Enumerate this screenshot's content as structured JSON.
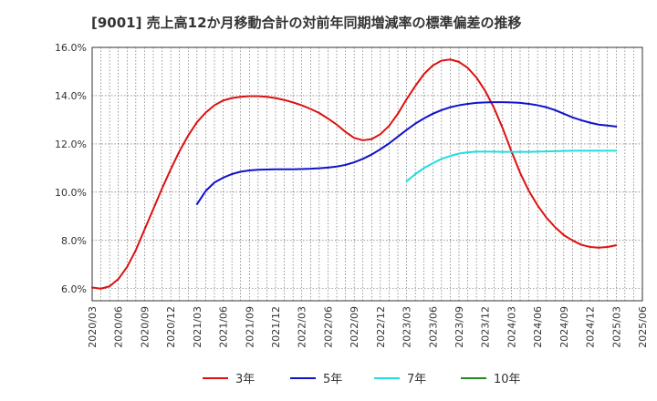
{
  "chart_data": {
    "type": "line",
    "title": "[9001]  売上高12か月移動合計の対前年同期増減率の標準偏差の推移",
    "xlabel": "",
    "ylabel": "",
    "ylim": [
      5.5,
      16.0
    ],
    "y_ticks": [
      "6.0%",
      "8.0%",
      "10.0%",
      "12.0%",
      "14.0%",
      "16.0%"
    ],
    "x_ticks": [
      "2020/03",
      "2020/06",
      "2020/09",
      "2020/12",
      "2021/03",
      "2021/06",
      "2021/09",
      "2021/12",
      "2022/03",
      "2022/06",
      "2022/09",
      "2022/12",
      "2023/03",
      "2023/06",
      "2023/09",
      "2023/12",
      "2024/03",
      "2024/06",
      "2024/09",
      "2024/12",
      "2025/03",
      "2025/06"
    ],
    "grid": true,
    "legend_position": "bottom",
    "series": [
      {
        "name": "3年",
        "color": "#dd1111",
        "start_index": 0,
        "values": [
          6.05,
          6.0,
          6.1,
          6.4,
          6.9,
          7.6,
          8.45,
          9.3,
          10.15,
          10.95,
          11.7,
          12.35,
          12.9,
          13.3,
          13.6,
          13.8,
          13.9,
          13.95,
          13.98,
          13.98,
          13.95,
          13.9,
          13.82,
          13.72,
          13.6,
          13.45,
          13.28,
          13.05,
          12.8,
          12.5,
          12.25,
          12.15,
          12.2,
          12.4,
          12.75,
          13.25,
          13.85,
          14.4,
          14.9,
          15.25,
          15.45,
          15.5,
          15.4,
          15.15,
          14.75,
          14.2,
          13.5,
          12.65,
          11.7,
          10.8,
          10.05,
          9.45,
          8.95,
          8.55,
          8.22,
          8.0,
          7.82,
          7.73,
          7.7,
          7.73,
          7.8
        ]
      },
      {
        "name": "5年",
        "color": "#1111cc",
        "start_index": 12,
        "values": [
          9.5,
          10.05,
          10.4,
          10.6,
          10.75,
          10.85,
          10.9,
          10.93,
          10.94,
          10.95,
          10.95,
          10.95,
          10.96,
          10.97,
          10.99,
          11.02,
          11.06,
          11.13,
          11.24,
          11.38,
          11.56,
          11.78,
          12.02,
          12.3,
          12.58,
          12.84,
          13.06,
          13.25,
          13.4,
          13.52,
          13.6,
          13.66,
          13.7,
          13.72,
          13.73,
          13.73,
          13.72,
          13.7,
          13.66,
          13.6,
          13.52,
          13.4,
          13.25,
          13.1,
          12.98,
          12.88,
          12.8,
          12.76,
          12.72
        ]
      },
      {
        "name": "7年",
        "color": "#22dddd",
        "start_index": 36,
        "values": [
          10.45,
          10.75,
          11.0,
          11.2,
          11.38,
          11.5,
          11.6,
          11.65,
          11.68,
          11.68,
          11.68,
          11.67,
          11.67,
          11.67,
          11.67,
          11.68,
          11.69,
          11.7,
          11.71,
          11.72,
          11.72,
          11.72,
          11.72,
          11.72,
          11.72
        ]
      },
      {
        "name": "10年",
        "color": "#228822",
        "start_index": 0,
        "values": []
      }
    ]
  }
}
